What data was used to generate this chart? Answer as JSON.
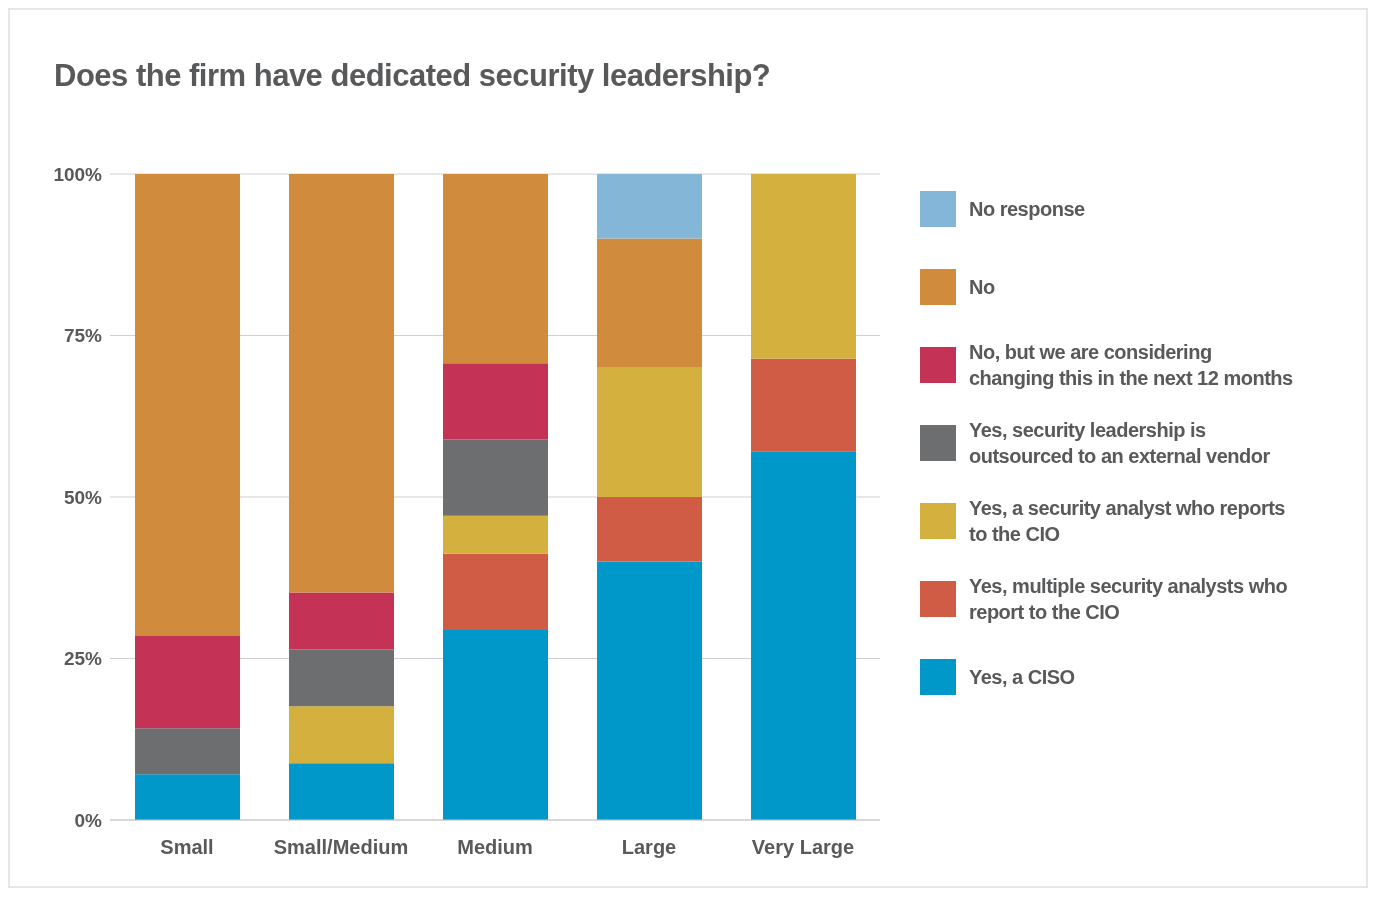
{
  "chart_data": {
    "type": "bar",
    "title": "Does the firm have dedicated security leadership?",
    "categories": [
      "Small",
      "Small/Medium",
      "Medium",
      "Large",
      "Very Large"
    ],
    "stacked": true,
    "series": [
      {
        "name": "Yes, a CISO",
        "color": "#0097c9",
        "values": [
          7.1,
          8.8,
          29.4,
          40,
          57.1
        ]
      },
      {
        "name": "Yes, multiple security analysts who report to the CIO",
        "color": "#d05c45",
        "values": [
          0,
          0,
          11.8,
          10,
          14.3
        ]
      },
      {
        "name": "Yes, a security analyst who reports to the CIO",
        "color": "#d4b03f",
        "values": [
          0,
          8.8,
          5.9,
          20,
          28.6
        ]
      },
      {
        "name": "Yes, security leadership is outsourced to an external vendor",
        "color": "#6d6e70",
        "values": [
          7.1,
          8.8,
          11.8,
          0,
          0
        ]
      },
      {
        "name": "No, but we are considering changing this in the next 12 months",
        "color": "#c43355",
        "values": [
          14.3,
          8.8,
          11.8,
          0,
          0
        ]
      },
      {
        "name": "No",
        "color": "#d18b3d",
        "values": [
          71.5,
          64.8,
          29.4,
          20,
          0
        ]
      },
      {
        "name": "No response",
        "color": "#84b6d8",
        "values": [
          0,
          0,
          0,
          10,
          0
        ]
      }
    ],
    "ylim": [
      0,
      100
    ],
    "yticks": [
      {
        "value": 0,
        "label": "0%"
      },
      {
        "value": 25,
        "label": "25%"
      },
      {
        "value": 50,
        "label": "50%"
      },
      {
        "value": 75,
        "label": "75%"
      },
      {
        "value": 100,
        "label": "100%"
      }
    ],
    "grid": "y",
    "legend": "right"
  }
}
